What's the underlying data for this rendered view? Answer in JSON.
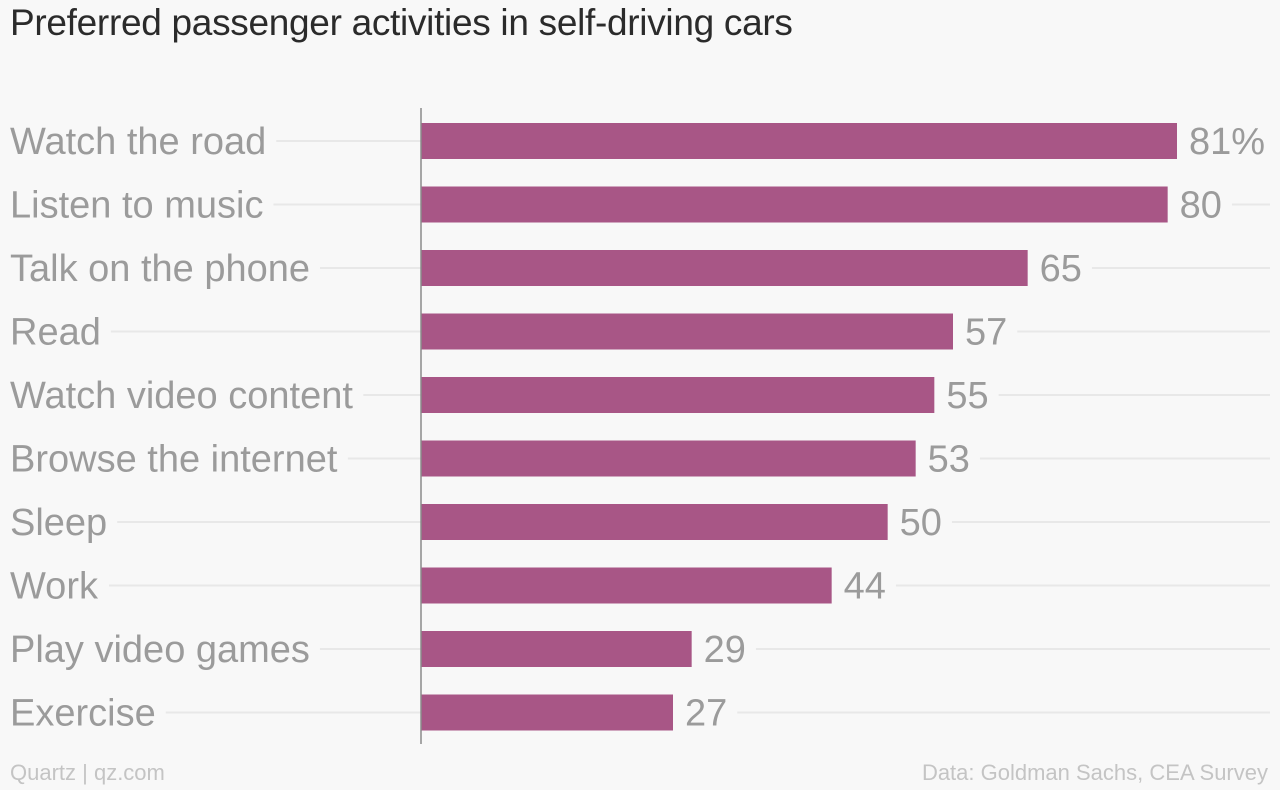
{
  "chart_data": {
    "type": "bar",
    "orientation": "horizontal",
    "title": "Preferred passenger activities in self-driving cars",
    "categories": [
      "Watch the road",
      "Listen to music",
      "Talk on the phone",
      "Read",
      "Watch video content",
      "Browse the internet",
      "Sleep",
      "Work",
      "Play video games",
      "Exercise"
    ],
    "values": [
      81,
      80,
      65,
      57,
      55,
      53,
      50,
      44,
      29,
      27
    ],
    "value_labels": [
      "81%",
      "80",
      "65",
      "57",
      "55",
      "53",
      "50",
      "44",
      "29",
      "27"
    ],
    "xlim": [
      0,
      81
    ],
    "grid": true,
    "bar_color": "#a85686",
    "label_color": "#9b9b9b",
    "grid_color": "#e8e8e8",
    "axis_color": "#8a8a8a"
  },
  "footer": {
    "source_left": "Quartz | qz.com",
    "source_right": "Data: Goldman Sachs, CEA Survey"
  }
}
